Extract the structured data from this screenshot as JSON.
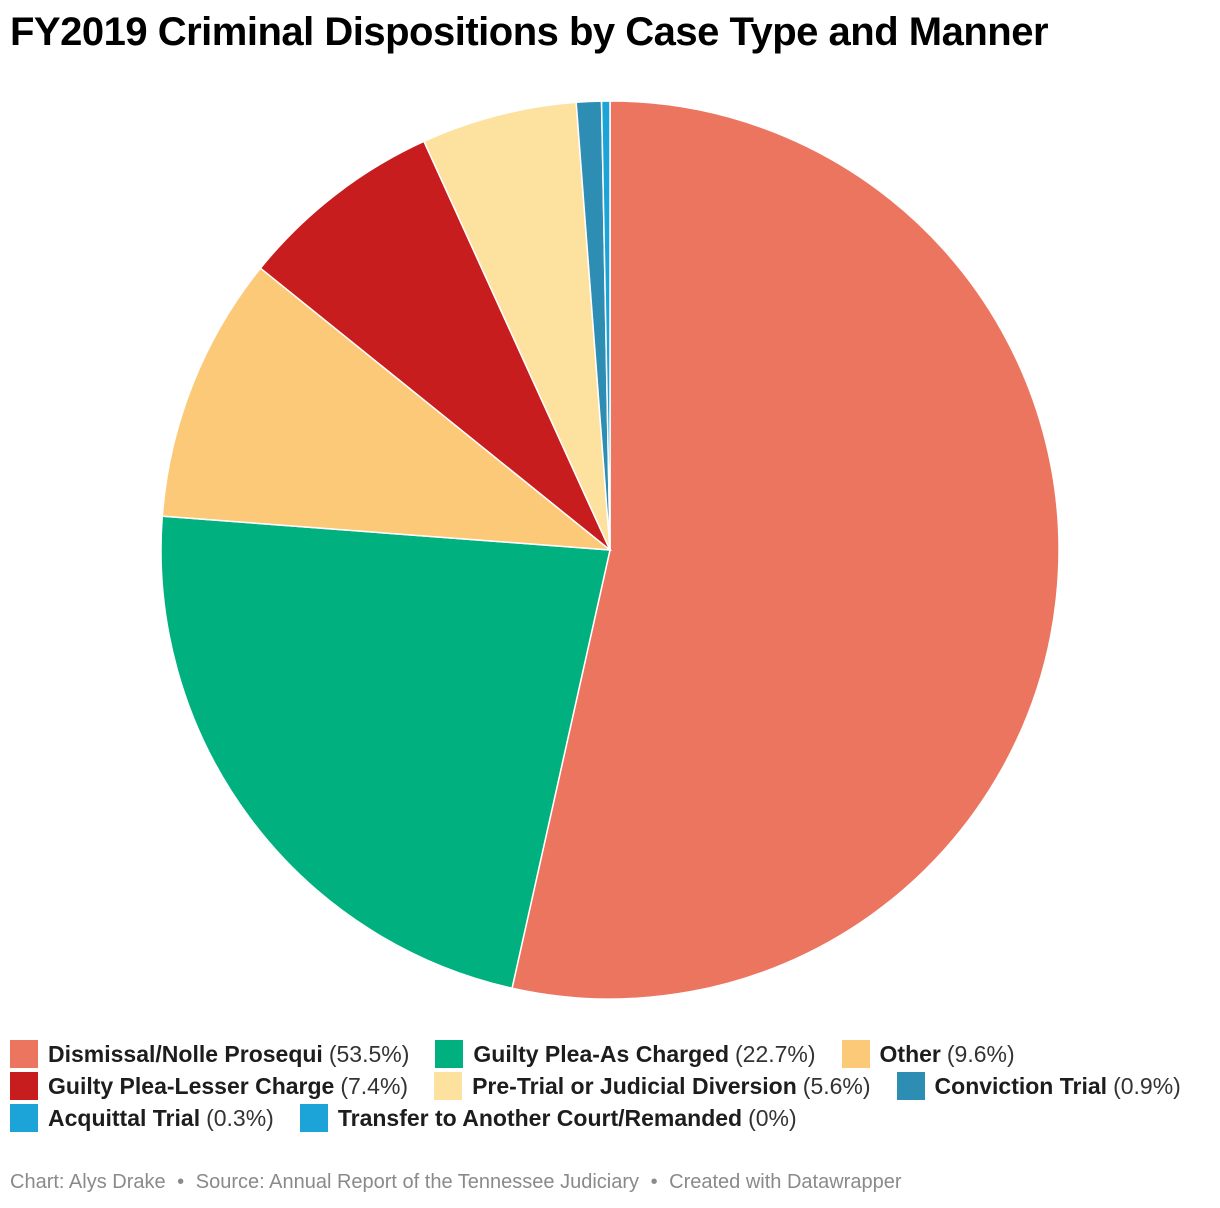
{
  "chart_data": {
    "type": "pie",
    "title": "FY2019 Criminal Dispositions by Case Type and Manner",
    "slices": [
      {
        "label": "Dismissal/Nolle Prosequi",
        "value": 53.5,
        "value_text": "(53.5%)",
        "color": "#ec7560"
      },
      {
        "label": "Guilty Plea-As Charged",
        "value": 22.7,
        "value_text": "(22.7%)",
        "color": "#00b07e"
      },
      {
        "label": "Other",
        "value": 9.6,
        "value_text": "(9.6%)",
        "color": "#fcc978"
      },
      {
        "label": "Guilty Plea-Lesser Charge",
        "value": 7.4,
        "value_text": "(7.4%)",
        "color": "#c71d1f"
      },
      {
        "label": "Pre-Trial or Judicial Diversion",
        "value": 5.6,
        "value_text": "(5.6%)",
        "color": "#fde19e"
      },
      {
        "label": "Conviction Trial",
        "value": 0.9,
        "value_text": "(0.9%)",
        "color": "#2e8db3"
      },
      {
        "label": "Acquittal Trial",
        "value": 0.3,
        "value_text": "(0.3%)",
        "color": "#1ca3d7"
      },
      {
        "label": "Transfer to Another Court/Remanded",
        "value": 0,
        "value_text": "(0%)",
        "color": "#1ca3d7"
      }
    ],
    "legend_position": "bottom",
    "direction": "clockwise from top"
  },
  "footer": {
    "chart_credit": "Chart: Alys Drake",
    "source": "Source: Annual Report of the Tennessee Judiciary",
    "created_with": "Created with Datawrapper",
    "separator": "•"
  }
}
